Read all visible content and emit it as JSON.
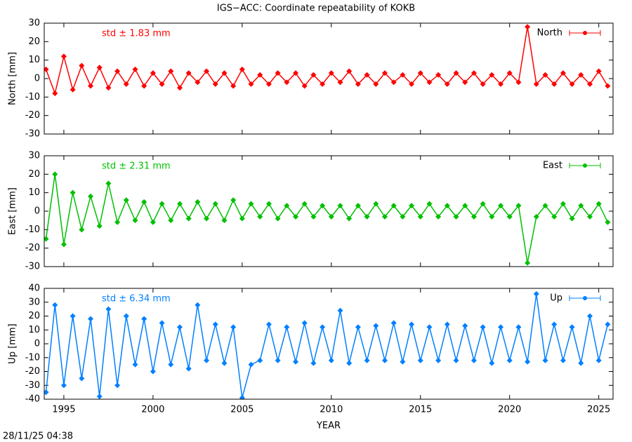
{
  "title": "IGS−ACC: Coordinate repeatability of KOKB",
  "timestamp": "28/11/25 04:38",
  "chart_data": [
    {
      "type": "scatter",
      "ylabel": "North [mm]",
      "annotation": "std ± 1.83 mm",
      "legend": "upper right",
      "grid": false,
      "x": [
        1994.0,
        1994.5,
        1995.0,
        1995.5,
        1996.0,
        1996.5,
        1997.0,
        1997.5,
        1998.0,
        1998.5,
        1999.0,
        1999.5,
        2000.0,
        2000.5,
        2001.0,
        2001.5,
        2002.0,
        2002.5,
        2003.0,
        2003.5,
        2004.0,
        2004.5,
        2005.0,
        2005.5,
        2006.0,
        2006.5,
        2007.0,
        2007.5,
        2008.0,
        2008.5,
        2009.0,
        2009.5,
        2010.0,
        2010.5,
        2011.0,
        2011.5,
        2012.0,
        2012.5,
        2013.0,
        2013.5,
        2014.0,
        2014.5,
        2015.0,
        2015.5,
        2016.0,
        2016.5,
        2017.0,
        2017.5,
        2018.0,
        2018.5,
        2019.0,
        2019.5,
        2020.0,
        2020.5,
        2021.0,
        2021.5,
        2022.0,
        2022.5,
        2023.0,
        2023.5,
        2024.0,
        2024.5,
        2025.0,
        2025.5
      ],
      "series": [
        {
          "name": "North",
          "color": "#ff0000",
          "values": [
            5,
            -8,
            12,
            -6,
            7,
            -4,
            6,
            -5,
            4,
            -3,
            5,
            -4,
            3,
            -3,
            4,
            -5,
            3,
            -2,
            4,
            -3,
            3,
            -4,
            5,
            -3,
            2,
            -3,
            3,
            -2,
            3,
            -4,
            2,
            -3,
            3,
            -2,
            4,
            -3,
            2,
            -3,
            3,
            -2,
            2,
            -3,
            3,
            -2,
            2,
            -3,
            3,
            -2,
            3,
            -3,
            2,
            -3,
            3,
            -2,
            28,
            -3,
            2,
            -3,
            3,
            -3,
            2,
            -3,
            4,
            -4
          ]
        }
      ],
      "xlim": [
        1993.9,
        2025.8
      ],
      "xticks": [
        1995,
        2000,
        2005,
        2010,
        2015,
        2020,
        2025
      ],
      "ylim": [
        -30,
        30
      ],
      "yticks": [
        -30,
        -20,
        -10,
        0,
        10,
        20,
        30
      ]
    },
    {
      "type": "scatter",
      "ylabel": "East [mm]",
      "annotation": "std ± 2.31 mm",
      "legend": "upper right",
      "grid": false,
      "x": [
        1994.0,
        1994.5,
        1995.0,
        1995.5,
        1996.0,
        1996.5,
        1997.0,
        1997.5,
        1998.0,
        1998.5,
        1999.0,
        1999.5,
        2000.0,
        2000.5,
        2001.0,
        2001.5,
        2002.0,
        2002.5,
        2003.0,
        2003.5,
        2004.0,
        2004.5,
        2005.0,
        2005.5,
        2006.0,
        2006.5,
        2007.0,
        2007.5,
        2008.0,
        2008.5,
        2009.0,
        2009.5,
        2010.0,
        2010.5,
        2011.0,
        2011.5,
        2012.0,
        2012.5,
        2013.0,
        2013.5,
        2014.0,
        2014.5,
        2015.0,
        2015.5,
        2016.0,
        2016.5,
        2017.0,
        2017.5,
        2018.0,
        2018.5,
        2019.0,
        2019.5,
        2020.0,
        2020.5,
        2021.0,
        2021.5,
        2022.0,
        2022.5,
        2023.0,
        2023.5,
        2024.0,
        2024.5,
        2025.0,
        2025.5
      ],
      "series": [
        {
          "name": "East",
          "color": "#00c000",
          "values": [
            -15,
            20,
            -18,
            10,
            -10,
            8,
            -8,
            15,
            -6,
            6,
            -5,
            5,
            -6,
            4,
            -5,
            4,
            -4,
            5,
            -4,
            4,
            -5,
            6,
            -4,
            4,
            -3,
            4,
            -4,
            3,
            -3,
            4,
            -3,
            3,
            -3,
            3,
            -4,
            3,
            -3,
            4,
            -3,
            3,
            -3,
            3,
            -3,
            4,
            -3,
            3,
            -3,
            3,
            -3,
            4,
            -3,
            3,
            -3,
            3,
            -28,
            -3,
            3,
            -3,
            4,
            -4,
            3,
            -3,
            4,
            -6
          ]
        }
      ],
      "xlim": [
        1993.9,
        2025.8
      ],
      "xticks": [
        1995,
        2000,
        2005,
        2010,
        2015,
        2020,
        2025
      ],
      "ylim": [
        -30,
        30
      ],
      "yticks": [
        -30,
        -20,
        -10,
        0,
        10,
        20,
        30
      ]
    },
    {
      "type": "scatter",
      "ylabel": "Up [mm]",
      "xlabel": "YEAR",
      "annotation": "std ± 6.34 mm",
      "legend": "upper right",
      "grid": false,
      "x": [
        1994.0,
        1994.5,
        1995.0,
        1995.5,
        1996.0,
        1996.5,
        1997.0,
        1997.5,
        1998.0,
        1998.5,
        1999.0,
        1999.5,
        2000.0,
        2000.5,
        2001.0,
        2001.5,
        2002.0,
        2002.5,
        2003.0,
        2003.5,
        2004.0,
        2004.5,
        2005.0,
        2005.5,
        2006.0,
        2006.5,
        2007.0,
        2007.5,
        2008.0,
        2008.5,
        2009.0,
        2009.5,
        2010.0,
        2010.5,
        2011.0,
        2011.5,
        2012.0,
        2012.5,
        2013.0,
        2013.5,
        2014.0,
        2014.5,
        2015.0,
        2015.5,
        2016.0,
        2016.5,
        2017.0,
        2017.5,
        2018.0,
        2018.5,
        2019.0,
        2019.5,
        2020.0,
        2020.5,
        2021.0,
        2021.5,
        2022.0,
        2022.5,
        2023.0,
        2023.5,
        2024.0,
        2024.5,
        2025.0,
        2025.5
      ],
      "series": [
        {
          "name": "Up",
          "color": "#0080ff",
          "values": [
            -35,
            28,
            -30,
            20,
            -25,
            18,
            -38,
            25,
            -30,
            20,
            -15,
            18,
            -20,
            15,
            -15,
            12,
            -18,
            28,
            -12,
            14,
            -14,
            12,
            -39,
            -15,
            -12,
            14,
            -12,
            12,
            -13,
            15,
            -14,
            12,
            -12,
            24,
            -14,
            12,
            -12,
            13,
            -12,
            15,
            -13,
            14,
            -12,
            12,
            -12,
            14,
            -12,
            13,
            -12,
            12,
            -14,
            12,
            -12,
            12,
            -13,
            36,
            -12,
            14,
            -12,
            12,
            -14,
            20,
            -12,
            14
          ]
        }
      ],
      "xlim": [
        1993.9,
        2025.8
      ],
      "xticks": [
        1995,
        2000,
        2005,
        2010,
        2015,
        2020,
        2025
      ],
      "ylim": [
        -40,
        40
      ],
      "yticks": [
        -40,
        -30,
        -20,
        -10,
        0,
        10,
        20,
        30,
        40
      ]
    }
  ]
}
